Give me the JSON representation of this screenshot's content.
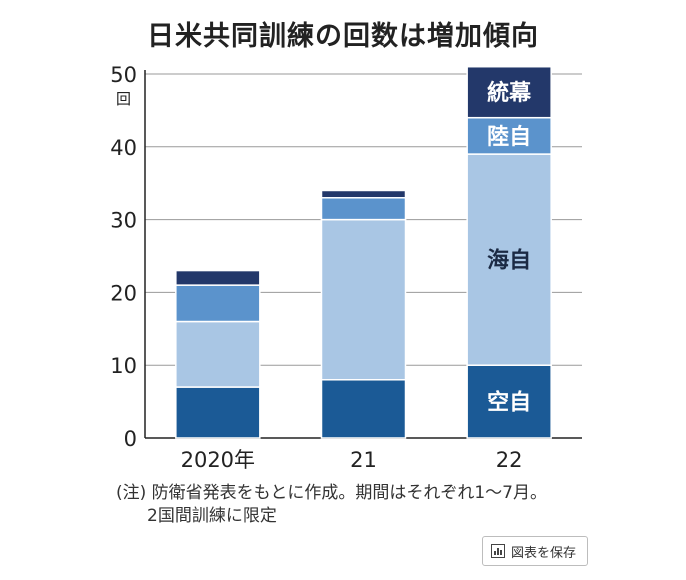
{
  "chart_data": {
    "type": "bar",
    "stacked": true,
    "title": "日米共同訓練の回数は増加傾向",
    "ylabel": "回",
    "ylim": [
      0,
      50
    ],
    "yticks": [
      0,
      10,
      20,
      30,
      40,
      50
    ],
    "grid": true,
    "categories": [
      "2020年",
      "21",
      "22"
    ],
    "series": [
      {
        "name": "空自",
        "color": "#1b5a96",
        "values": [
          7,
          8,
          10
        ]
      },
      {
        "name": "海自",
        "color": "#a9c6e4",
        "values": [
          9,
          22,
          29
        ]
      },
      {
        "name": "陸自",
        "color": "#5b93cc",
        "values": [
          5,
          3,
          5
        ]
      },
      {
        "name": "統幕",
        "color": "#23386a",
        "values": [
          2,
          1,
          7
        ]
      }
    ],
    "labels_on_category": "22"
  },
  "notes": {
    "line1": "(注) 防衛省発表をもとに作成。期間はそれぞれ1～7月。",
    "line2": "2国間訓練に限定"
  },
  "save_button": {
    "label": "図表を保存",
    "icon": "bar-chart-icon"
  }
}
